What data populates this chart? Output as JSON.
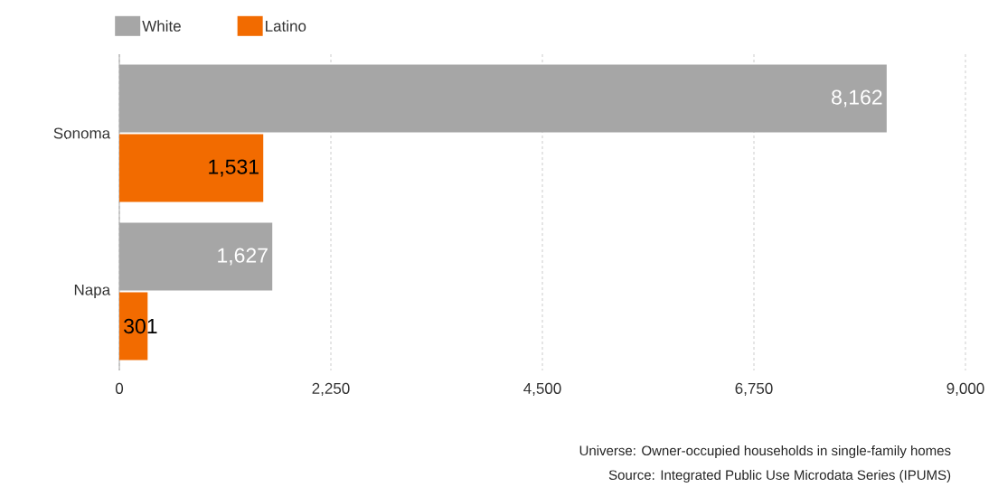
{
  "chart_data": {
    "type": "bar",
    "orientation": "horizontal",
    "categories": [
      "Sonoma",
      "Napa"
    ],
    "series": [
      {
        "name": "White",
        "color": "#a6a6a6",
        "values": [
          8162,
          1627
        ],
        "value_labels": [
          "8,162",
          "1,627"
        ]
      },
      {
        "name": "Latino",
        "color": "#f26b00",
        "values": [
          1531,
          301
        ],
        "value_labels": [
          "1,531",
          "301"
        ]
      }
    ],
    "xlim": [
      0,
      9000
    ],
    "xticks": [
      0,
      {
        "value": 2250,
        "label": "2,250"
      },
      {
        "value": 4500,
        "label": "4,500"
      },
      {
        "value": 6750,
        "label": "6,750"
      },
      {
        "value": 9000,
        "label": "9,000"
      }
    ],
    "grid": "x",
    "legend": "top left",
    "annotations": [
      "Universe: Owner-occupied households in single-family homes",
      "Source: Integrated Public Use Microdata Series (IPUMS)"
    ]
  }
}
